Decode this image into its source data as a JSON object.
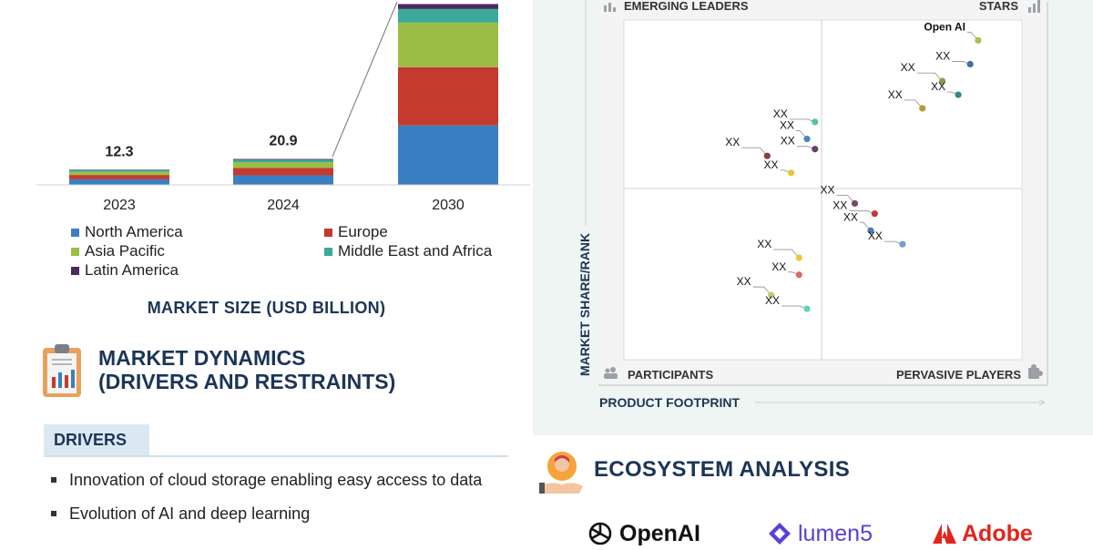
{
  "chart_data": [
    {
      "type": "bar",
      "stacked": true,
      "title": "MARKET SIZE (USD BILLION)",
      "categories": [
        "2023",
        "2024",
        "2030"
      ],
      "totals": [
        12.3,
        20.9,
        null
      ],
      "series": [
        {
          "name": "North America",
          "color": "#3a7fc1",
          "values": [
            4.5,
            7.7,
            48
          ]
        },
        {
          "name": "Europe",
          "color": "#c43a2f",
          "values": [
            3.5,
            6.0,
            47
          ]
        },
        {
          "name": "Asia Pacific",
          "color": "#9cbd45",
          "values": [
            2.7,
            4.6,
            36
          ]
        },
        {
          "name": "Middle East and Africa",
          "color": "#3aa99a",
          "values": [
            1.2,
            2.0,
            11
          ]
        },
        {
          "name": "Latin America",
          "color": "#4b2b5e",
          "values": [
            0.4,
            0.6,
            4
          ]
        }
      ],
      "legend_placement": "bottom"
    },
    {
      "type": "scatter",
      "xlabel": "PRODUCT FOOTPRINT",
      "ylabel": "MARKET SHARE/RANK",
      "xlim": [
        0,
        100
      ],
      "ylim": [
        0,
        100
      ],
      "quadrants": [
        "EMERGING LEADERS",
        "STARS",
        "PARTICIPANTS",
        "PERVASIVE PLAYERS"
      ],
      "points": [
        {
          "label": "Open AI",
          "x": 89,
          "y": 94,
          "color": "#a8c04e"
        },
        {
          "label": "XX",
          "x": 87,
          "y": 87,
          "color": "#3f6fa6"
        },
        {
          "label": "XX",
          "x": 80,
          "y": 82,
          "color": "#8a9a52"
        },
        {
          "label": "XX",
          "x": 84,
          "y": 78,
          "color": "#2f8d84"
        },
        {
          "label": "XX",
          "x": 75,
          "y": 74,
          "color": "#b49a3c"
        },
        {
          "label": "XX",
          "x": 48,
          "y": 70,
          "color": "#5cbfa5"
        },
        {
          "label": "XX",
          "x": 46,
          "y": 65,
          "color": "#4a86c5"
        },
        {
          "label": "XX",
          "x": 48,
          "y": 62,
          "color": "#6b3d6b"
        },
        {
          "label": "XX",
          "x": 36,
          "y": 60,
          "color": "#8d3b3b"
        },
        {
          "label": "XX",
          "x": 42,
          "y": 55,
          "color": "#e8c534"
        },
        {
          "label": "XX",
          "x": 58,
          "y": 46,
          "color": "#7b4867"
        },
        {
          "label": "XX",
          "x": 63,
          "y": 43,
          "color": "#c4363a"
        },
        {
          "label": "XX",
          "x": 62,
          "y": 38,
          "color": "#4d7ab1"
        },
        {
          "label": "XX",
          "x": 70,
          "y": 34,
          "color": "#6f9fd1"
        },
        {
          "label": "XX",
          "x": 44,
          "y": 30,
          "color": "#f0c640"
        },
        {
          "label": "XX",
          "x": 44,
          "y": 25,
          "color": "#d66b67"
        },
        {
          "label": "XX",
          "x": 37,
          "y": 19,
          "color": "#b7cf6d"
        },
        {
          "label": "XX",
          "x": 46,
          "y": 15,
          "color": "#67d0bd"
        }
      ]
    }
  ],
  "left": {
    "dynamics_title_line1": "MARKET DYNAMICS",
    "dynamics_title_line2": "(DRIVERS AND RESTRAINTS)",
    "drivers_tab": "DRIVERS",
    "drivers": [
      "Innovation of cloud storage enabling easy access to data",
      "Evolution of AI and deep learning"
    ]
  },
  "right": {
    "ecosystem_title": "ECOSYSTEM ANALYSIS",
    "logos": [
      {
        "name": "OpenAI",
        "color": "#111111"
      },
      {
        "name": "lumen5",
        "color": "#5b3fd6"
      },
      {
        "name": "Adobe",
        "color": "#e1251b"
      }
    ]
  },
  "colors": {
    "heading": "#1c3557",
    "panel": "#eef5f2"
  }
}
